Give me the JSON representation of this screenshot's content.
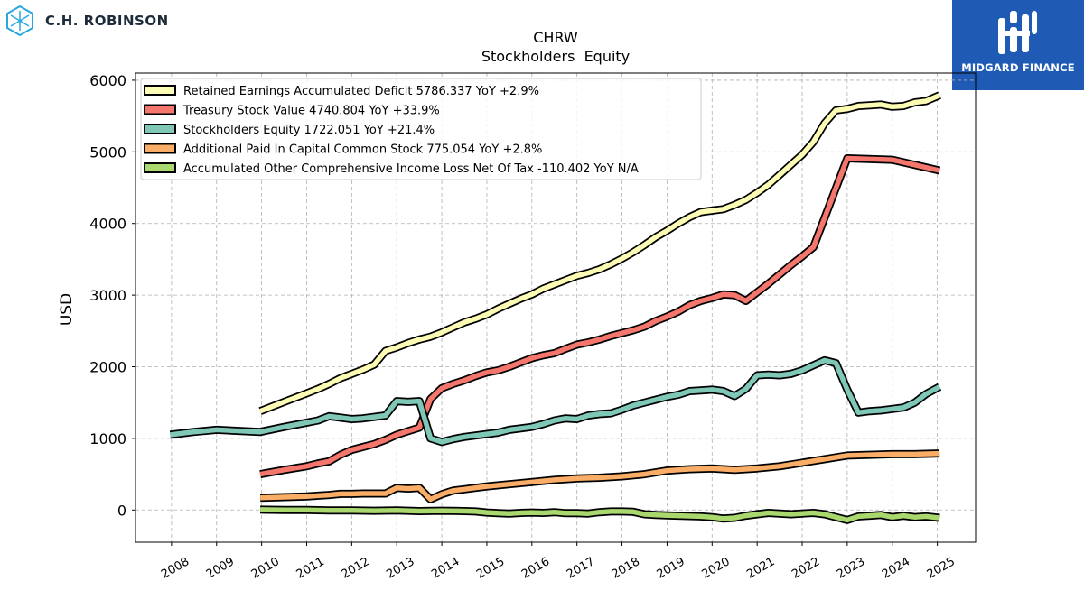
{
  "branding": {
    "left_logo_text": "C.H. ROBINSON",
    "right_logo_text": "MIDGARD FINANCE",
    "right_logo_bg": "#1f5bb4"
  },
  "chart_data": {
    "type": "line",
    "title": "CHRW",
    "subtitle": "Stockholders  Equity",
    "xlabel": "",
    "ylabel": "USD",
    "xlim": [
      2007.2,
      2025.85
    ],
    "ylim": [
      -450,
      6100
    ],
    "yticks": [
      0,
      1000,
      2000,
      3000,
      4000,
      5000,
      6000
    ],
    "xticks": [
      "2008",
      "2009",
      "2010",
      "2011",
      "2012",
      "2013",
      "2014",
      "2015",
      "2016",
      "2017",
      "2018",
      "2019",
      "2020",
      "2021",
      "2022",
      "2023",
      "2024",
      "2025"
    ],
    "grid": true,
    "legend_position": "top-left",
    "series": [
      {
        "name": "Retained Earnings Accumulated Deficit",
        "legend": "Retained Earnings Accumulated Deficit  5786.337 YoY +2.9%",
        "color": "#fdfcb4",
        "x": [
          2009.97,
          2010.5,
          2011.0,
          2011.25,
          2011.5,
          2011.75,
          2012.0,
          2012.25,
          2012.5,
          2012.75,
          2013.0,
          2013.25,
          2013.5,
          2013.75,
          2014.0,
          2014.25,
          2014.5,
          2014.75,
          2015.0,
          2015.25,
          2015.5,
          2015.75,
          2016.0,
          2016.25,
          2016.5,
          2016.75,
          2017.0,
          2017.25,
          2017.5,
          2017.75,
          2018.0,
          2018.25,
          2018.5,
          2018.75,
          2019.0,
          2019.25,
          2019.5,
          2019.75,
          2020.0,
          2020.25,
          2020.5,
          2020.75,
          2021.0,
          2021.25,
          2021.5,
          2021.75,
          2022.0,
          2022.25,
          2022.5,
          2022.75,
          2023.0,
          2023.25,
          2023.5,
          2023.75,
          2024.0,
          2024.25,
          2024.5,
          2024.75,
          2025.05
        ],
        "values": [
          1380,
          1510,
          1630,
          1690,
          1760,
          1840,
          1900,
          1960,
          2030,
          2220,
          2270,
          2330,
          2380,
          2420,
          2480,
          2550,
          2620,
          2670,
          2730,
          2810,
          2880,
          2950,
          3010,
          3090,
          3150,
          3210,
          3270,
          3310,
          3360,
          3430,
          3510,
          3600,
          3700,
          3810,
          3900,
          4000,
          4090,
          4160,
          4180,
          4200,
          4260,
          4330,
          4430,
          4540,
          4680,
          4820,
          4960,
          5140,
          5400,
          5580,
          5600,
          5640,
          5650,
          5660,
          5630,
          5640,
          5690,
          5710,
          5790
        ]
      },
      {
        "name": "Treasury Stock Value",
        "legend": "Treasury Stock Value  4740.804 YoY +33.9%",
        "color": "#f4766c",
        "x": [
          2009.97,
          2010.5,
          2011.0,
          2011.25,
          2011.5,
          2011.75,
          2012.0,
          2012.25,
          2012.5,
          2012.75,
          2013.0,
          2013.25,
          2013.5,
          2013.75,
          2014.0,
          2014.25,
          2014.5,
          2014.75,
          2015.0,
          2015.25,
          2015.5,
          2015.75,
          2016.0,
          2016.25,
          2016.5,
          2016.75,
          2017.0,
          2017.25,
          2017.5,
          2017.75,
          2018.0,
          2018.25,
          2018.5,
          2018.75,
          2019.0,
          2019.25,
          2019.5,
          2019.75,
          2020.0,
          2020.25,
          2020.5,
          2020.75,
          2021.0,
          2021.25,
          2021.5,
          2021.75,
          2022.0,
          2022.25,
          2023.0,
          2024.0,
          2025.05
        ],
        "values": [
          500,
          560,
          610,
          650,
          680,
          770,
          840,
          880,
          920,
          980,
          1050,
          1100,
          1150,
          1550,
          1700,
          1760,
          1810,
          1870,
          1920,
          1950,
          2000,
          2060,
          2120,
          2160,
          2190,
          2250,
          2310,
          2340,
          2380,
          2430,
          2470,
          2510,
          2560,
          2640,
          2700,
          2770,
          2860,
          2920,
          2960,
          3010,
          3000,
          2920,
          3040,
          3160,
          3290,
          3420,
          3540,
          3670,
          4910,
          4890,
          4740
        ]
      },
      {
        "name": "Stockholders Equity",
        "legend": "Stockholders Equity  1722.051 YoY +21.4%",
        "color": "#7fc8b8",
        "x": [
          2007.97,
          2008.5,
          2009.0,
          2009.97,
          2010.5,
          2011.0,
          2011.25,
          2011.5,
          2011.75,
          2012.0,
          2012.25,
          2012.5,
          2012.75,
          2013.0,
          2013.25,
          2013.5,
          2013.75,
          2014.0,
          2014.25,
          2014.5,
          2014.75,
          2015.0,
          2015.25,
          2015.5,
          2015.75,
          2016.0,
          2016.25,
          2016.5,
          2016.75,
          2017.0,
          2017.25,
          2017.5,
          2017.75,
          2018.0,
          2018.25,
          2018.5,
          2018.75,
          2019.0,
          2019.25,
          2019.5,
          2019.75,
          2020.0,
          2020.25,
          2020.5,
          2020.75,
          2021.0,
          2021.25,
          2021.5,
          2021.75,
          2022.0,
          2022.25,
          2022.5,
          2022.75,
          2023.0,
          2023.25,
          2023.5,
          2023.75,
          2024.0,
          2024.25,
          2024.5,
          2024.75,
          2025.05
        ],
        "values": [
          1050,
          1090,
          1120,
          1090,
          1160,
          1220,
          1250,
          1310,
          1290,
          1270,
          1280,
          1300,
          1320,
          1520,
          1510,
          1520,
          1000,
          950,
          990,
          1020,
          1040,
          1060,
          1080,
          1120,
          1140,
          1160,
          1200,
          1250,
          1280,
          1270,
          1320,
          1340,
          1350,
          1400,
          1460,
          1500,
          1540,
          1580,
          1610,
          1660,
          1670,
          1680,
          1660,
          1590,
          1690,
          1880,
          1890,
          1880,
          1900,
          1950,
          2020,
          2090,
          2050,
          1680,
          1360,
          1380,
          1390,
          1410,
          1430,
          1500,
          1620,
          1720
        ]
      },
      {
        "name": "Additional Paid In Capital Common Stock",
        "legend": "Additional Paid In Capital Common Stock  775.054 YoY +2.8%",
        "color": "#f9ad66",
        "x": [
          2009.97,
          2010.5,
          2011.0,
          2011.25,
          2011.5,
          2011.75,
          2012.0,
          2012.25,
          2012.5,
          2012.75,
          2013.0,
          2013.25,
          2013.5,
          2013.75,
          2014.0,
          2014.25,
          2014.5,
          2014.75,
          2015.0,
          2015.5,
          2016.0,
          2016.5,
          2017.0,
          2017.5,
          2018.0,
          2018.5,
          2019.0,
          2019.5,
          2020.0,
          2020.5,
          2021.0,
          2021.5,
          2022.0,
          2022.5,
          2023.0,
          2023.5,
          2024.0,
          2024.5,
          2025.05
        ],
        "values": [
          170,
          180,
          190,
          200,
          210,
          225,
          225,
          230,
          230,
          230,
          310,
          300,
          310,
          150,
          220,
          270,
          290,
          310,
          330,
          360,
          390,
          420,
          440,
          450,
          470,
          500,
          550,
          570,
          580,
          560,
          580,
          610,
          660,
          710,
          760,
          770,
          780,
          780,
          790
        ]
      },
      {
        "name": "Accumulated Other Comprehensive Income Loss Net Of Tax",
        "legend": "Accumulated Other Comprehensive Income Loss Net Of Tax  -110.402 YoY N/A",
        "color": "#a8d86e",
        "x": [
          2009.97,
          2010.5,
          2011.0,
          2011.5,
          2012.0,
          2012.5,
          2013.0,
          2013.5,
          2014.0,
          2014.5,
          2014.75,
          2015.0,
          2015.25,
          2015.5,
          2015.75,
          2016.0,
          2016.25,
          2016.5,
          2016.75,
          2017.0,
          2017.25,
          2017.5,
          2017.75,
          2018.0,
          2018.25,
          2018.5,
          2018.75,
          2019.0,
          2019.25,
          2019.5,
          2019.75,
          2020.0,
          2020.25,
          2020.5,
          2020.75,
          2021.0,
          2021.25,
          2021.5,
          2021.75,
          2022.0,
          2022.25,
          2022.5,
          2022.75,
          2023.0,
          2023.25,
          2023.5,
          2023.75,
          2024.0,
          2024.25,
          2024.5,
          2024.75,
          2025.05
        ],
        "values": [
          5,
          0,
          0,
          -5,
          -5,
          -10,
          -5,
          -15,
          -10,
          -15,
          -20,
          -35,
          -45,
          -50,
          -40,
          -35,
          -40,
          -30,
          -45,
          -45,
          -50,
          -30,
          -20,
          -20,
          -25,
          -60,
          -70,
          -75,
          -80,
          -85,
          -90,
          -100,
          -120,
          -110,
          -80,
          -60,
          -40,
          -50,
          -60,
          -50,
          -40,
          -60,
          -100,
          -140,
          -90,
          -80,
          -70,
          -100,
          -80,
          -100,
          -90,
          -110
        ]
      }
    ]
  }
}
